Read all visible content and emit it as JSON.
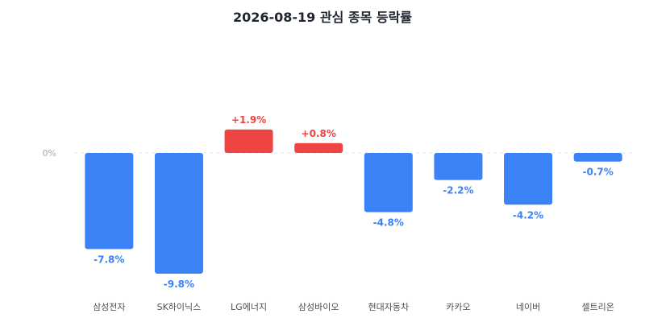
{
  "chart_data": {
    "type": "bar",
    "title": "2026-08-19 관심 종목 등락률",
    "categories": [
      "삼성전자",
      "SK하이닉스",
      "LG에너지",
      "삼성바이오",
      "현대자동차",
      "카카오",
      "네이버",
      "셀트리온"
    ],
    "values": [
      -7.8,
      -9.8,
      1.9,
      0.8,
      -4.8,
      -2.2,
      -4.2,
      -0.7
    ],
    "value_labels": [
      "-7.8%",
      "-9.8%",
      "+1.9%",
      "+0.8%",
      "-4.8%",
      "-2.2%",
      "-4.2%",
      "-0.7%"
    ],
    "yticks": [
      {
        "value": 0,
        "label": "0%"
      }
    ],
    "ylim": [
      -10.5,
      5
    ],
    "grid": false,
    "colors": {
      "positive": "#ef4444",
      "negative": "#3b82f6",
      "baseline": "#e5e7eb"
    }
  }
}
